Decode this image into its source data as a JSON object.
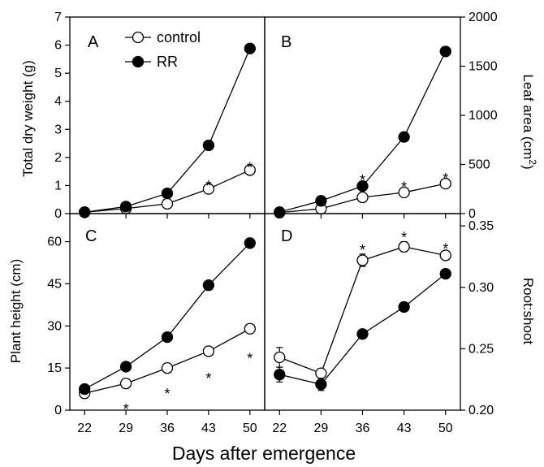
{
  "figure": {
    "xlabel": "Days after emergence",
    "legend": [
      {
        "label": "control",
        "marker": "open-circle"
      },
      {
        "label": "RR",
        "marker": "filled-circle"
      }
    ],
    "colors": {
      "control_fill": "#ffffff",
      "rr_fill": "#000000",
      "line": "#000000"
    }
  },
  "chart_data": [
    {
      "panel": "A",
      "type": "line",
      "ylabel": "Total dry weight (g)",
      "yaxis_side": "left",
      "ylim": [
        0,
        7
      ],
      "yticks": [
        "0",
        "1",
        "2",
        "3",
        "4",
        "5",
        "6",
        "7"
      ],
      "x": [
        22,
        29,
        36,
        43,
        50
      ],
      "xticks": [
        "22",
        "29",
        "36",
        "43",
        "50"
      ],
      "series": [
        {
          "name": "control",
          "values": [
            0.05,
            0.18,
            0.35,
            0.88,
            1.55
          ]
        },
        {
          "name": "RR",
          "values": [
            0.05,
            0.25,
            0.72,
            2.43,
            5.88
          ]
        }
      ],
      "significance": [
        {
          "x": 43,
          "y": 1.1
        },
        {
          "x": 50,
          "y": 1.75
        }
      ]
    },
    {
      "panel": "B",
      "type": "line",
      "ylabel": "Leaf area (cm2)",
      "yaxis_side": "right",
      "ylim": [
        0,
        2000
      ],
      "yticks": [
        "0",
        "500",
        "1000",
        "1500",
        "2000"
      ],
      "x": [
        22,
        29,
        36,
        43,
        50
      ],
      "series": [
        {
          "name": "control",
          "values": [
            10,
            50,
            165,
            215,
            305
          ]
        },
        {
          "name": "RR",
          "values": [
            15,
            130,
            280,
            780,
            1650
          ]
        }
      ],
      "significance": [
        {
          "x": 36,
          "y": 370
        },
        {
          "x": 43,
          "y": 300
        },
        {
          "x": 50,
          "y": 390
        }
      ]
    },
    {
      "panel": "C",
      "type": "line",
      "ylabel": "Plant height (cm)",
      "yaxis_side": "left",
      "ylim": [
        0,
        70
      ],
      "yticks": [
        "0",
        "15",
        "30",
        "45",
        "60"
      ],
      "x": [
        22,
        29,
        36,
        43,
        50
      ],
      "series": [
        {
          "name": "control",
          "values": [
            6,
            9.5,
            15,
            21,
            29
          ]
        },
        {
          "name": "RR",
          "values": [
            7.5,
            15.5,
            26,
            44.5,
            59.5
          ]
        }
      ],
      "significance": [
        {
          "x": 29,
          "y": 1.5
        },
        {
          "x": 36,
          "y": 7
        },
        {
          "x": 43,
          "y": 12.5
        },
        {
          "x": 50,
          "y": 19.5
        }
      ]
    },
    {
      "panel": "D",
      "type": "line",
      "ylabel": "Root:shoot",
      "yaxis_side": "right",
      "ylim": [
        0.2,
        0.36
      ],
      "yticks": [
        "0.20",
        "0.25",
        "0.30",
        "0.35"
      ],
      "x": [
        22,
        29,
        36,
        43,
        50
      ],
      "series": [
        {
          "name": "control",
          "values": [
            0.243,
            0.23,
            0.322,
            0.333,
            0.326
          ],
          "errors": [
            0.008,
            0.003,
            0.005,
            0.004,
            0.003
          ]
        },
        {
          "name": "RR",
          "values": [
            0.229,
            0.221,
            0.262,
            0.284,
            0.311
          ],
          "errors": [
            0.006,
            0.005,
            0.002,
            0.003,
            0.002
          ]
        }
      ],
      "significance": [
        {
          "x": 36,
          "y": 0.333
        },
        {
          "x": 43,
          "y": 0.343
        },
        {
          "x": 50,
          "y": 0.334
        }
      ]
    }
  ]
}
